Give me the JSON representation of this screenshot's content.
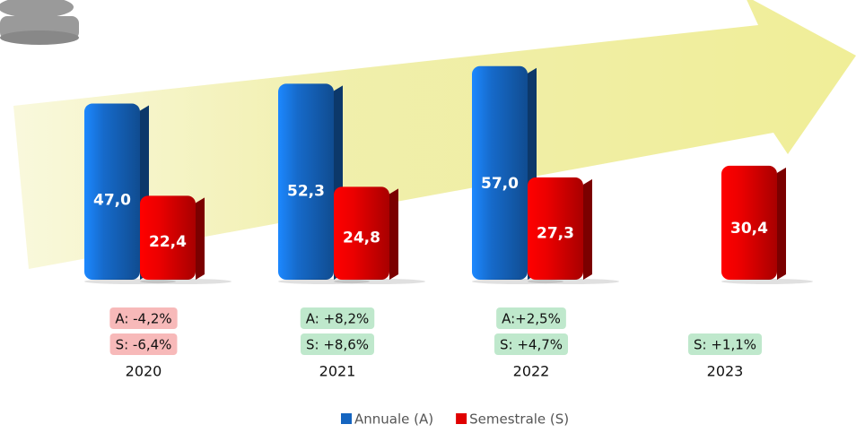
{
  "chart_data": {
    "type": "bar",
    "categories": [
      "2020",
      "2021",
      "2022",
      "2023"
    ],
    "series": [
      {
        "name": "Annuale (A)",
        "color": "#1565c0",
        "values": [
          47.0,
          52.3,
          57.0,
          null
        ],
        "value_labels": [
          "47,0",
          "52,3",
          "57,0",
          null
        ]
      },
      {
        "name": "Semestrale (S)",
        "color": "#e00000",
        "values": [
          22.4,
          24.8,
          27.3,
          30.4
        ],
        "value_labels": [
          "22,4",
          "24,8",
          "27,3",
          "30,4"
        ]
      }
    ],
    "annotations": [
      [
        {
          "text": "A: -4,2%",
          "color": "#f7b9b9"
        },
        {
          "text": "S: -6,4%",
          "color": "#f7b9b9"
        }
      ],
      [
        {
          "text": "A: +8,2%",
          "color": "#bfe8cc"
        },
        {
          "text": "S: +8,6%",
          "color": "#bfe8cc"
        }
      ],
      [
        {
          "text": "A:+2,5%",
          "color": "#bfe8cc"
        },
        {
          "text": "S: +4,7%",
          "color": "#bfe8cc"
        }
      ],
      [
        null,
        {
          "text": "S: +1,1%",
          "color": "#bfe8cc"
        }
      ]
    ],
    "legend": "bottom"
  }
}
